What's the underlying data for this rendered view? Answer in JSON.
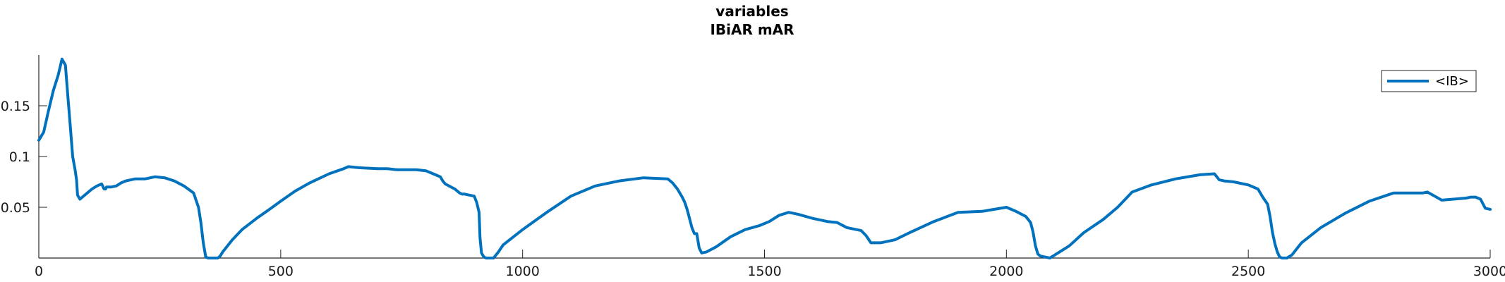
{
  "chart_data": {
    "type": "line",
    "title": "variables",
    "subtitle": "IBiAR mAR",
    "xlabel": "",
    "ylabel": "",
    "xlim": [
      0,
      3000
    ],
    "ylim": [
      0,
      0.2
    ],
    "grid": false,
    "legend_position": "top-right",
    "x_ticks": [
      {
        "value": 0,
        "label": "0"
      },
      {
        "value": 500,
        "label": "500"
      },
      {
        "value": 1000,
        "label": "1000"
      },
      {
        "value": 1500,
        "label": "1500"
      },
      {
        "value": 2000,
        "label": "2000"
      },
      {
        "value": 2500,
        "label": "2500"
      },
      {
        "value": 3000,
        "label": "3000"
      }
    ],
    "y_ticks": [
      {
        "value": 0.05,
        "label": "0.05"
      },
      {
        "value": 0.1,
        "label": "0.1"
      },
      {
        "value": 0.15,
        "label": "0.15"
      }
    ],
    "series": [
      {
        "name": "<IB>",
        "color": "#0072BD",
        "x": [
          0,
          10,
          20,
          30,
          40,
          48,
          55,
          60,
          65,
          70,
          75,
          78,
          80,
          85,
          90,
          100,
          110,
          120,
          130,
          135,
          138,
          140,
          150,
          160,
          170,
          180,
          200,
          220,
          240,
          260,
          280,
          300,
          320,
          330,
          335,
          340,
          345,
          350,
          355,
          360,
          370,
          375,
          380,
          400,
          420,
          450,
          480,
          500,
          530,
          560,
          600,
          630,
          640,
          660,
          700,
          720,
          740,
          760,
          780,
          800,
          820,
          830,
          835,
          840,
          860,
          870,
          875,
          880,
          900,
          905,
          910,
          912,
          915,
          920,
          925,
          930,
          940,
          950,
          960,
          1000,
          1050,
          1100,
          1150,
          1200,
          1250,
          1300,
          1310,
          1320,
          1330,
          1335,
          1340,
          1345,
          1350,
          1355,
          1360,
          1365,
          1370,
          1380,
          1400,
          1430,
          1460,
          1490,
          1510,
          1530,
          1550,
          1570,
          1600,
          1630,
          1650,
          1670,
          1700,
          1710,
          1720,
          1740,
          1770,
          1800,
          1850,
          1900,
          1950,
          2000,
          2010,
          2020,
          2040,
          2050,
          2055,
          2060,
          2065,
          2070,
          2080,
          2090,
          2100,
          2130,
          2160,
          2200,
          2230,
          2260,
          2300,
          2350,
          2400,
          2430,
          2440,
          2450,
          2470,
          2500,
          2520,
          2530,
          2540,
          2545,
          2550,
          2555,
          2560,
          2565,
          2570,
          2580,
          2590,
          2610,
          2650,
          2700,
          2750,
          2800,
          2850,
          2860,
          2870,
          2900,
          2950,
          2960,
          2970,
          2980,
          2990,
          3000
        ],
        "values": [
          0.116,
          0.124,
          0.145,
          0.165,
          0.18,
          0.196,
          0.19,
          0.16,
          0.13,
          0.1,
          0.087,
          0.077,
          0.062,
          0.058,
          0.06,
          0.064,
          0.068,
          0.071,
          0.073,
          0.068,
          0.068,
          0.07,
          0.07,
          0.071,
          0.074,
          0.076,
          0.078,
          0.078,
          0.08,
          0.079,
          0.076,
          0.071,
          0.064,
          0.05,
          0.035,
          0.015,
          0.001,
          0.0,
          0.0,
          0.0,
          0.0,
          0.002,
          0.006,
          0.018,
          0.028,
          0.039,
          0.049,
          0.056,
          0.066,
          0.074,
          0.083,
          0.088,
          0.09,
          0.089,
          0.088,
          0.088,
          0.087,
          0.087,
          0.087,
          0.086,
          0.082,
          0.08,
          0.076,
          0.073,
          0.068,
          0.064,
          0.063,
          0.063,
          0.061,
          0.055,
          0.045,
          0.02,
          0.005,
          0.001,
          0.0,
          0.0,
          0.0,
          0.006,
          0.013,
          0.028,
          0.045,
          0.061,
          0.071,
          0.076,
          0.079,
          0.078,
          0.074,
          0.068,
          0.06,
          0.055,
          0.048,
          0.039,
          0.03,
          0.024,
          0.024,
          0.01,
          0.005,
          0.006,
          0.011,
          0.021,
          0.028,
          0.032,
          0.036,
          0.042,
          0.045,
          0.043,
          0.039,
          0.036,
          0.035,
          0.03,
          0.027,
          0.022,
          0.015,
          0.015,
          0.018,
          0.025,
          0.036,
          0.045,
          0.046,
          0.05,
          0.048,
          0.046,
          0.041,
          0.035,
          0.026,
          0.012,
          0.004,
          0.002,
          0.001,
          0.0,
          0.003,
          0.012,
          0.025,
          0.038,
          0.05,
          0.065,
          0.072,
          0.078,
          0.082,
          0.083,
          0.077,
          0.076,
          0.075,
          0.072,
          0.068,
          0.06,
          0.053,
          0.041,
          0.025,
          0.014,
          0.006,
          0.001,
          0.0,
          0.0,
          0.003,
          0.015,
          0.03,
          0.044,
          0.056,
          0.064,
          0.064,
          0.064,
          0.065,
          0.057,
          0.059,
          0.06,
          0.06,
          0.058,
          0.049,
          0.048
        ]
      }
    ]
  }
}
